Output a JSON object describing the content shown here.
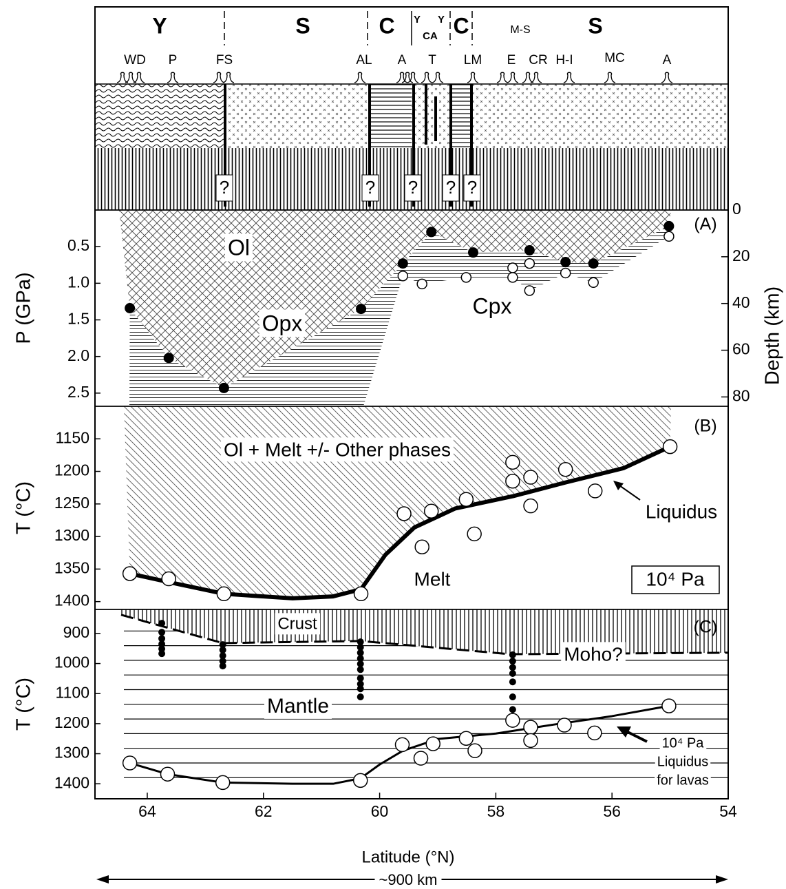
{
  "cross_section": {
    "segments": [
      "Y",
      "S",
      "C",
      "Y",
      "CA",
      "Y",
      "C",
      "M-S",
      "S"
    ],
    "volcanoes": [
      "WD",
      "P",
      "FS",
      "AL",
      "A",
      "T",
      "LM",
      "E",
      "CR",
      "H-I",
      "MC",
      "A"
    ],
    "question_marks": [
      "?",
      "?",
      "?",
      "?",
      "?"
    ]
  },
  "chart_data": [
    {
      "type": "scatter",
      "panel_label": "(A)",
      "ylabel": "P (GPa)",
      "y2label": "Depth (km)",
      "annotations": [
        "Ol",
        "Opx",
        "Cpx"
      ],
      "xlim": [
        64.9,
        54
      ],
      "ylim": [
        0,
        2.68
      ],
      "yticks": [
        0.5,
        {
          "value": 1,
          "label": "1.0"
        },
        1.5,
        {
          "value": 2,
          "label": "2.0"
        },
        2.5
      ],
      "y2lim": [
        0,
        84
      ],
      "y2ticks": [
        0,
        20,
        40,
        60,
        80
      ],
      "series": [
        {
          "style": "filled-dot",
          "color": "#000000",
          "x": [
            64.3,
            63.63,
            62.68,
            60.32,
            59.6,
            59.11,
            58.39,
            57.42,
            56.8,
            56.32,
            55.02
          ],
          "values": [
            1.34,
            2.02,
            2.43,
            1.35,
            0.73,
            0.3,
            0.58,
            0.55,
            0.71,
            0.73,
            0.22
          ]
        },
        {
          "style": "open-circle",
          "color": "#ffffff",
          "x": [
            59.6,
            59.27,
            58.51,
            57.71,
            57.71,
            57.42,
            57.42,
            56.8,
            56.32,
            55.02
          ],
          "values": [
            0.9,
            1.01,
            0.92,
            0.79,
            0.92,
            0.73,
            1.1,
            0.86,
            0.99,
            0.36
          ]
        }
      ]
    },
    {
      "type": "scatter",
      "panel_label": "(B)",
      "ylabel": "T (°C)",
      "annotations": [
        "Ol + Melt +/- Other phases",
        "Melt"
      ],
      "box_label": "10⁴ Pa",
      "xlim": [
        64.9,
        54
      ],
      "ylim": [
        1100,
        1412
      ],
      "yticks": [
        1150,
        1200,
        1250,
        1300,
        1350,
        1400
      ],
      "series": [
        {
          "name": "Liquidus",
          "style": "line",
          "color": "#000000",
          "width": 6,
          "x": [
            64.3,
            63.63,
            62.68,
            61.5,
            60.8,
            60.32,
            59.9,
            59.4,
            58.7,
            57.7,
            56.8,
            55.8,
            55.0
          ],
          "values": [
            1357,
            1370,
            1388,
            1395,
            1392,
            1381,
            1328,
            1286,
            1257,
            1238,
            1217,
            1195,
            1162
          ]
        },
        {
          "style": "open-circle",
          "color": "#ffffff",
          "x": [
            64.3,
            63.63,
            62.68,
            60.32,
            59.58,
            59.27,
            59.11,
            58.51,
            58.37,
            57.71,
            57.71,
            57.4,
            57.4,
            56.8,
            56.29,
            55.0
          ],
          "values": [
            1357,
            1365,
            1388,
            1388,
            1265,
            1316,
            1261,
            1243,
            1296,
            1186,
            1215,
            1209,
            1253,
            1197,
            1230,
            1162
          ]
        }
      ]
    },
    {
      "type": "scatter",
      "panel_label": "(C)",
      "ylabel": "T (°C)",
      "xlabel": "Latitude (°N)",
      "scale_label": "~900 km",
      "annotations": [
        "Crust",
        "Mantle"
      ],
      "liquidus_label": [
        "10⁴ Pa",
        "Liquidus",
        "for lavas"
      ],
      "xlim": [
        64.9,
        54
      ],
      "ylim": [
        820,
        1450
      ],
      "xticks": [
        64,
        62,
        60,
        58,
        56,
        54
      ],
      "yticks": [
        900,
        1000,
        1100,
        1200,
        1300,
        1400
      ],
      "series": [
        {
          "name": "Moho?",
          "style": "dashed-line",
          "color": "#000000",
          "width": 3,
          "x": [
            64.45,
            62.7,
            60.33,
            57.75,
            54
          ],
          "values": [
            838,
            932,
            925,
            969,
            964
          ]
        },
        {
          "style": "line",
          "color": "#000000",
          "width": 3,
          "x": [
            64.3,
            63.65,
            62.7,
            61.5,
            60.8,
            60.33,
            60.0,
            59.6,
            59.0,
            58.0,
            57.0,
            56.0,
            55.02
          ],
          "values": [
            1331,
            1368,
            1396,
            1400,
            1400,
            1382,
            1336,
            1290,
            1251,
            1233,
            1203,
            1175,
            1141
          ]
        },
        {
          "style": "filled-dot",
          "color": "#000000",
          "x": [
            63.75,
            63.75,
            63.75,
            63.75,
            63.75,
            63.75,
            62.7,
            62.7,
            62.7,
            62.7,
            62.7,
            60.33,
            60.33,
            60.33,
            60.33,
            60.33,
            60.33,
            60.33,
            60.33,
            60.33,
            60.33,
            57.71,
            57.71,
            57.71,
            57.71,
            57.71,
            57.71,
            57.71,
            57.71
          ],
          "values": [
            866,
            896,
            917,
            935,
            951,
            967,
            937,
            955,
            974,
            992,
            1008,
            928,
            946,
            964,
            983,
            1001,
            1020,
            1049,
            1068,
            1084,
            1111,
            971,
            992,
            1013,
            1033,
            1061,
            1111,
            1153,
            1187
          ]
        },
        {
          "style": "open-circle",
          "color": "#ffffff",
          "x": [
            64.3,
            63.65,
            62.7,
            60.33,
            59.61,
            59.29,
            59.08,
            58.51,
            58.36,
            57.71,
            57.4,
            57.4,
            56.82,
            56.3,
            55.02
          ],
          "values": [
            1331,
            1368,
            1396,
            1389,
            1270,
            1315,
            1267,
            1249,
            1290,
            1189,
            1212,
            1256,
            1205,
            1231,
            1141
          ]
        }
      ]
    }
  ]
}
